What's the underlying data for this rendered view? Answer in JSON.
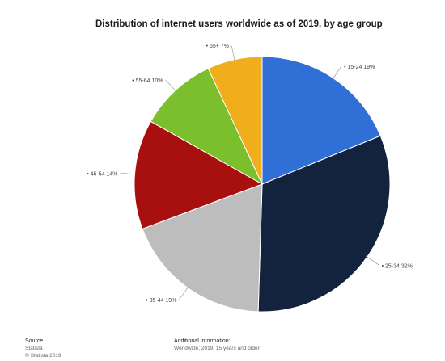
{
  "chart_data": {
    "type": "pie",
    "title": "Distribution of internet users worldwide as of 2019, by age group",
    "start_angle_deg": 0,
    "direction": "clockwise",
    "slices": [
      {
        "label": "15-24",
        "value": 19,
        "color": "#2f6fd6",
        "display": "• 15-24 19%"
      },
      {
        "label": "25-34",
        "value": 32,
        "color": "#13223d",
        "display": "• 25-34 32%"
      },
      {
        "label": "35-44",
        "value": 19,
        "color": "#bdbdbd",
        "display": "• 35-44 19%"
      },
      {
        "label": "45-54",
        "value": 14,
        "color": "#a80f0f",
        "display": "• 45-54 14%"
      },
      {
        "label": "55-64",
        "value": 10,
        "color": "#7cbf2c",
        "display": "• 55-64 10%"
      },
      {
        "label": "65+",
        "value": 7,
        "color": "#f0ad1c",
        "display": "• 65+ 7%"
      }
    ]
  },
  "footer": {
    "source_title": "Source",
    "source_lines": [
      "Statista",
      "© Statista 2019"
    ],
    "info_title": "Additional Information:",
    "info_lines": [
      "Worldwide; 2019; 15 years and older"
    ]
  }
}
